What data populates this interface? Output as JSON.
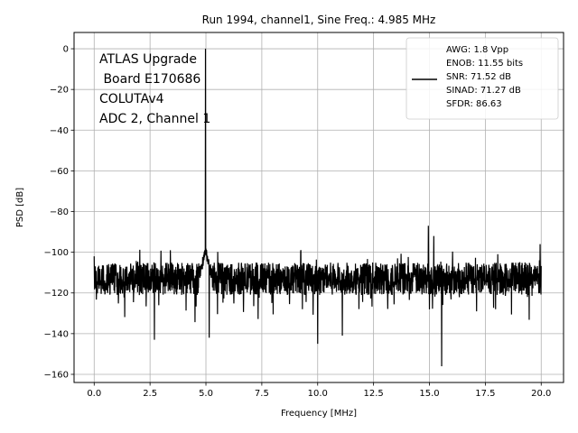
{
  "chart_data": {
    "type": "line",
    "title": "Run 1994, channel1, Sine Freq.: 4.985 MHz",
    "xlabel": "Frequency [MHz]",
    "ylabel": "PSD [dB]",
    "xlim": [
      -0.9,
      21.0
    ],
    "ylim": [
      -164,
      8
    ],
    "xticks": [
      0.0,
      2.5,
      5.0,
      7.5,
      10.0,
      12.5,
      15.0,
      17.5,
      20.0
    ],
    "xtick_labels": [
      "0.0",
      "2.5",
      "5.0",
      "7.5",
      "10.0",
      "12.5",
      "15.0",
      "17.5",
      "20.0"
    ],
    "yticks": [
      0,
      -20,
      -40,
      -60,
      -80,
      -100,
      -120,
      -140,
      -160
    ],
    "ytick_labels": [
      "0",
      "−20",
      "−40",
      "−60",
      "−80",
      "−100",
      "−120",
      "−140",
      "−160"
    ],
    "grid": true,
    "legend_position": "top-right",
    "series_color": "#000000",
    "annotation_lines": [
      "ATLAS Upgrade",
      " Board E170686",
      "COLUTAv4",
      "ADC 2, Channel 1"
    ],
    "legend_lines": [
      "AWG: 1.8 Vpp",
      "ENOB: 11.55 bits",
      "SNR: 71.52 dB",
      "SINAD: 71.27 dB",
      "SFDR: 86.63"
    ],
    "series": [
      {
        "x_range": [
          0.0,
          20.0
        ],
        "noise_floor_db": -113,
        "fundamental": {
          "freq": 4.985,
          "peak_db": 0
        },
        "spurs": [
          {
            "freq": 14.95,
            "peak_db": -87
          },
          {
            "freq": 15.2,
            "peak_db": -92
          },
          {
            "freq": 19.95,
            "peak_db": -96
          }
        ],
        "dips": [
          {
            "freq": 2.7,
            "db": -143
          },
          {
            "freq": 5.15,
            "db": -142
          },
          {
            "freq": 10.0,
            "db": -145
          },
          {
            "freq": 11.1,
            "db": -141
          },
          {
            "freq": 15.55,
            "db": -156
          }
        ]
      }
    ]
  }
}
